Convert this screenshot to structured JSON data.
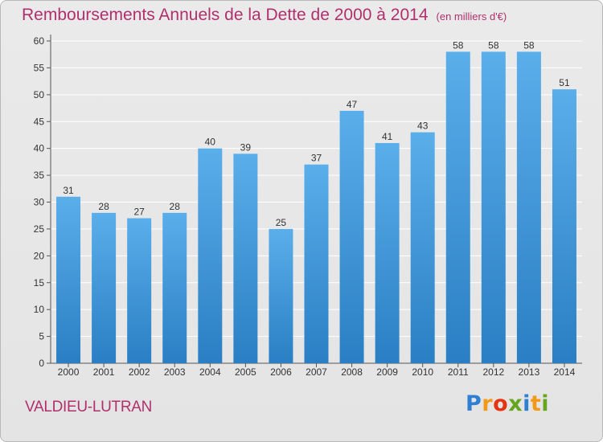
{
  "header": {
    "title": "Remboursements Annuels de la Dette de 2000 à 2014",
    "unit": "(en milliers d'€)"
  },
  "footer": {
    "town": "VALDIEU-LUTRAN",
    "brand": "Proxiti",
    "brand_letters": [
      {
        "ch": "P",
        "color": "#2f7fd2"
      },
      {
        "ch": "r",
        "color": "#f29a17"
      },
      {
        "ch": "o",
        "color": "#e63312"
      },
      {
        "ch": "x",
        "color": "#66a61e"
      },
      {
        "ch": "i",
        "color": "#2f7fd2"
      },
      {
        "ch": "t",
        "color": "#f29a17"
      },
      {
        "ch": "i",
        "color": "#66a61e"
      }
    ]
  },
  "colors": {
    "bar_top": "#5aaeea",
    "bar_bottom": "#2a7fc4",
    "title": "#b0306e",
    "grid": "#ffffff"
  },
  "chart_data": {
    "type": "bar",
    "title": "Remboursements Annuels de la Dette de 2000 à 2014",
    "subtitle": "(en milliers d'€)",
    "xlabel": "",
    "ylabel": "",
    "categories": [
      "2000",
      "2001",
      "2002",
      "2003",
      "2004",
      "2005",
      "2006",
      "2007",
      "2008",
      "2009",
      "2010",
      "2011",
      "2012",
      "2013",
      "2014"
    ],
    "values": [
      31,
      28,
      27,
      28,
      40,
      39,
      25,
      37,
      47,
      41,
      43,
      58,
      58,
      58,
      51
    ],
    "ylim": [
      0,
      60
    ],
    "yticks": [
      0,
      5,
      10,
      15,
      20,
      25,
      30,
      35,
      40,
      45,
      50,
      55,
      60
    ],
    "grid": true,
    "show_data_labels": true
  }
}
